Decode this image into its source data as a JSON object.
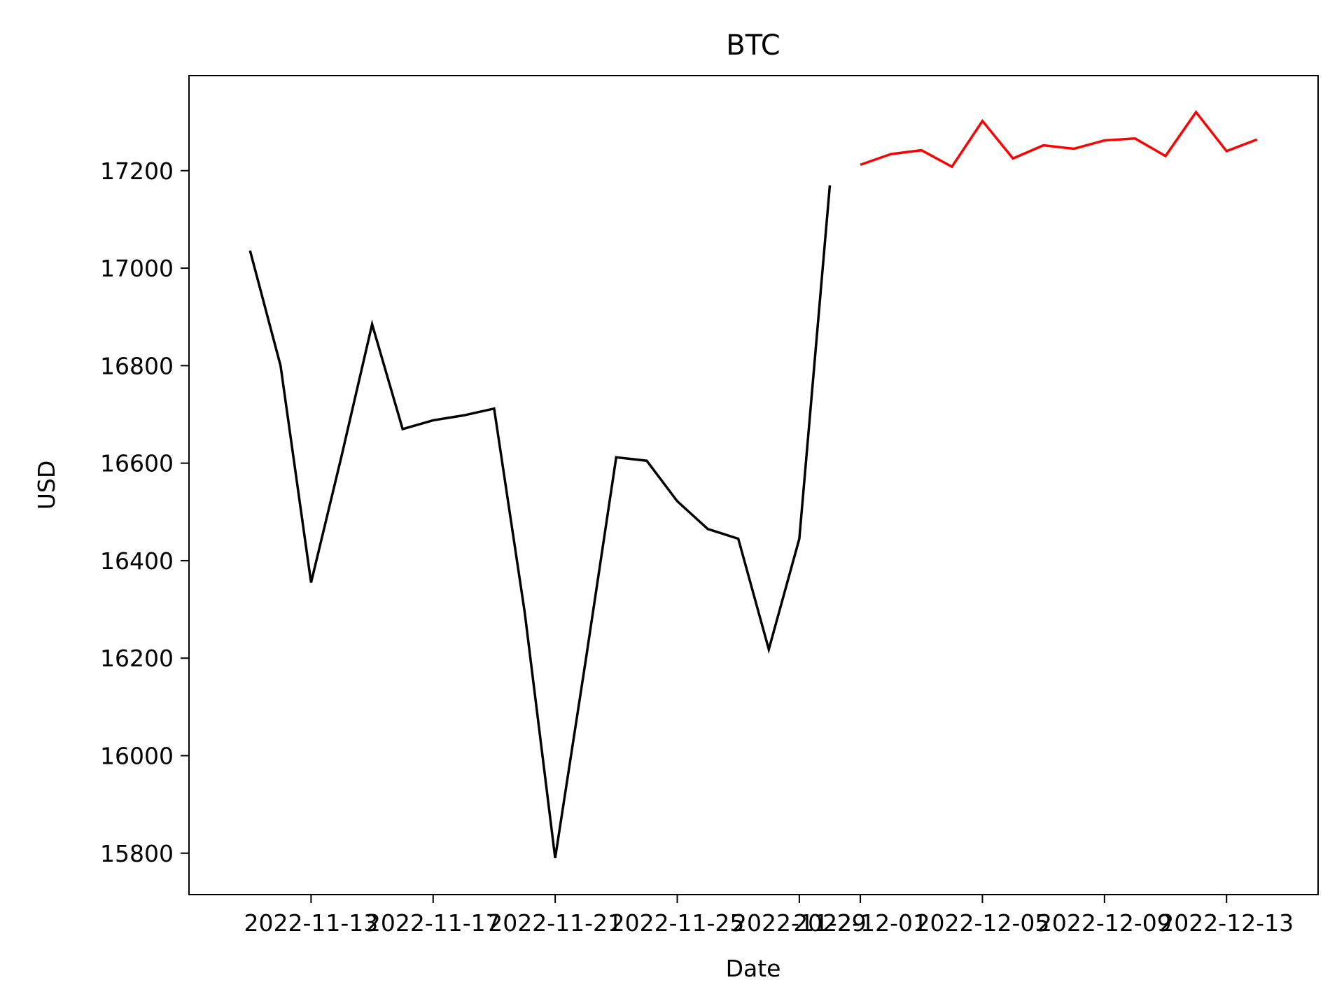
{
  "chart_data": {
    "type": "line",
    "title": "BTC",
    "xlabel": "Date",
    "ylabel": "USD",
    "xlim": [
      "2022-11-09",
      "2022-12-16"
    ],
    "ylim": [
      15715,
      17395
    ],
    "grid": false,
    "legend": "none",
    "x_ticks": [
      "2022-11-13",
      "2022-11-17",
      "2022-11-21",
      "2022-11-25",
      "2022-11-29",
      "2022-12-01",
      "2022-12-05",
      "2022-12-09",
      "2022-12-13"
    ],
    "y_ticks": [
      15800,
      16000,
      16200,
      16400,
      16600,
      16800,
      17000,
      17200
    ],
    "series": [
      {
        "color": "#000000",
        "points": [
          [
            "2022-11-11",
            17036
          ],
          [
            "2022-11-12",
            16800
          ],
          [
            "2022-11-13",
            16355
          ],
          [
            "2022-11-14",
            16615
          ],
          [
            "2022-11-15",
            16885
          ],
          [
            "2022-11-16",
            16670
          ],
          [
            "2022-11-17",
            16688
          ],
          [
            "2022-11-18",
            16698
          ],
          [
            "2022-11-19",
            16712
          ],
          [
            "2022-11-20",
            16295
          ],
          [
            "2022-11-21",
            15790
          ],
          [
            "2022-11-22",
            16195
          ],
          [
            "2022-11-23",
            16612
          ],
          [
            "2022-11-24",
            16605
          ],
          [
            "2022-11-25",
            16522
          ],
          [
            "2022-11-26",
            16465
          ],
          [
            "2022-11-27",
            16445
          ],
          [
            "2022-11-28",
            16218
          ],
          [
            "2022-11-29",
            16445
          ],
          [
            "2022-11-30",
            17170
          ]
        ]
      },
      {
        "color": "#ff0000",
        "points": [
          [
            "2022-12-01",
            17212
          ],
          [
            "2022-12-02",
            17234
          ],
          [
            "2022-12-03",
            17242
          ],
          [
            "2022-12-04",
            17208
          ],
          [
            "2022-12-05",
            17302
          ],
          [
            "2022-12-06",
            17225
          ],
          [
            "2022-12-07",
            17252
          ],
          [
            "2022-12-08",
            17245
          ],
          [
            "2022-12-09",
            17262
          ],
          [
            "2022-12-10",
            17266
          ],
          [
            "2022-12-11",
            17230
          ],
          [
            "2022-12-12",
            17320
          ],
          [
            "2022-12-13",
            17240
          ],
          [
            "2022-12-14",
            17264
          ]
        ]
      }
    ]
  }
}
